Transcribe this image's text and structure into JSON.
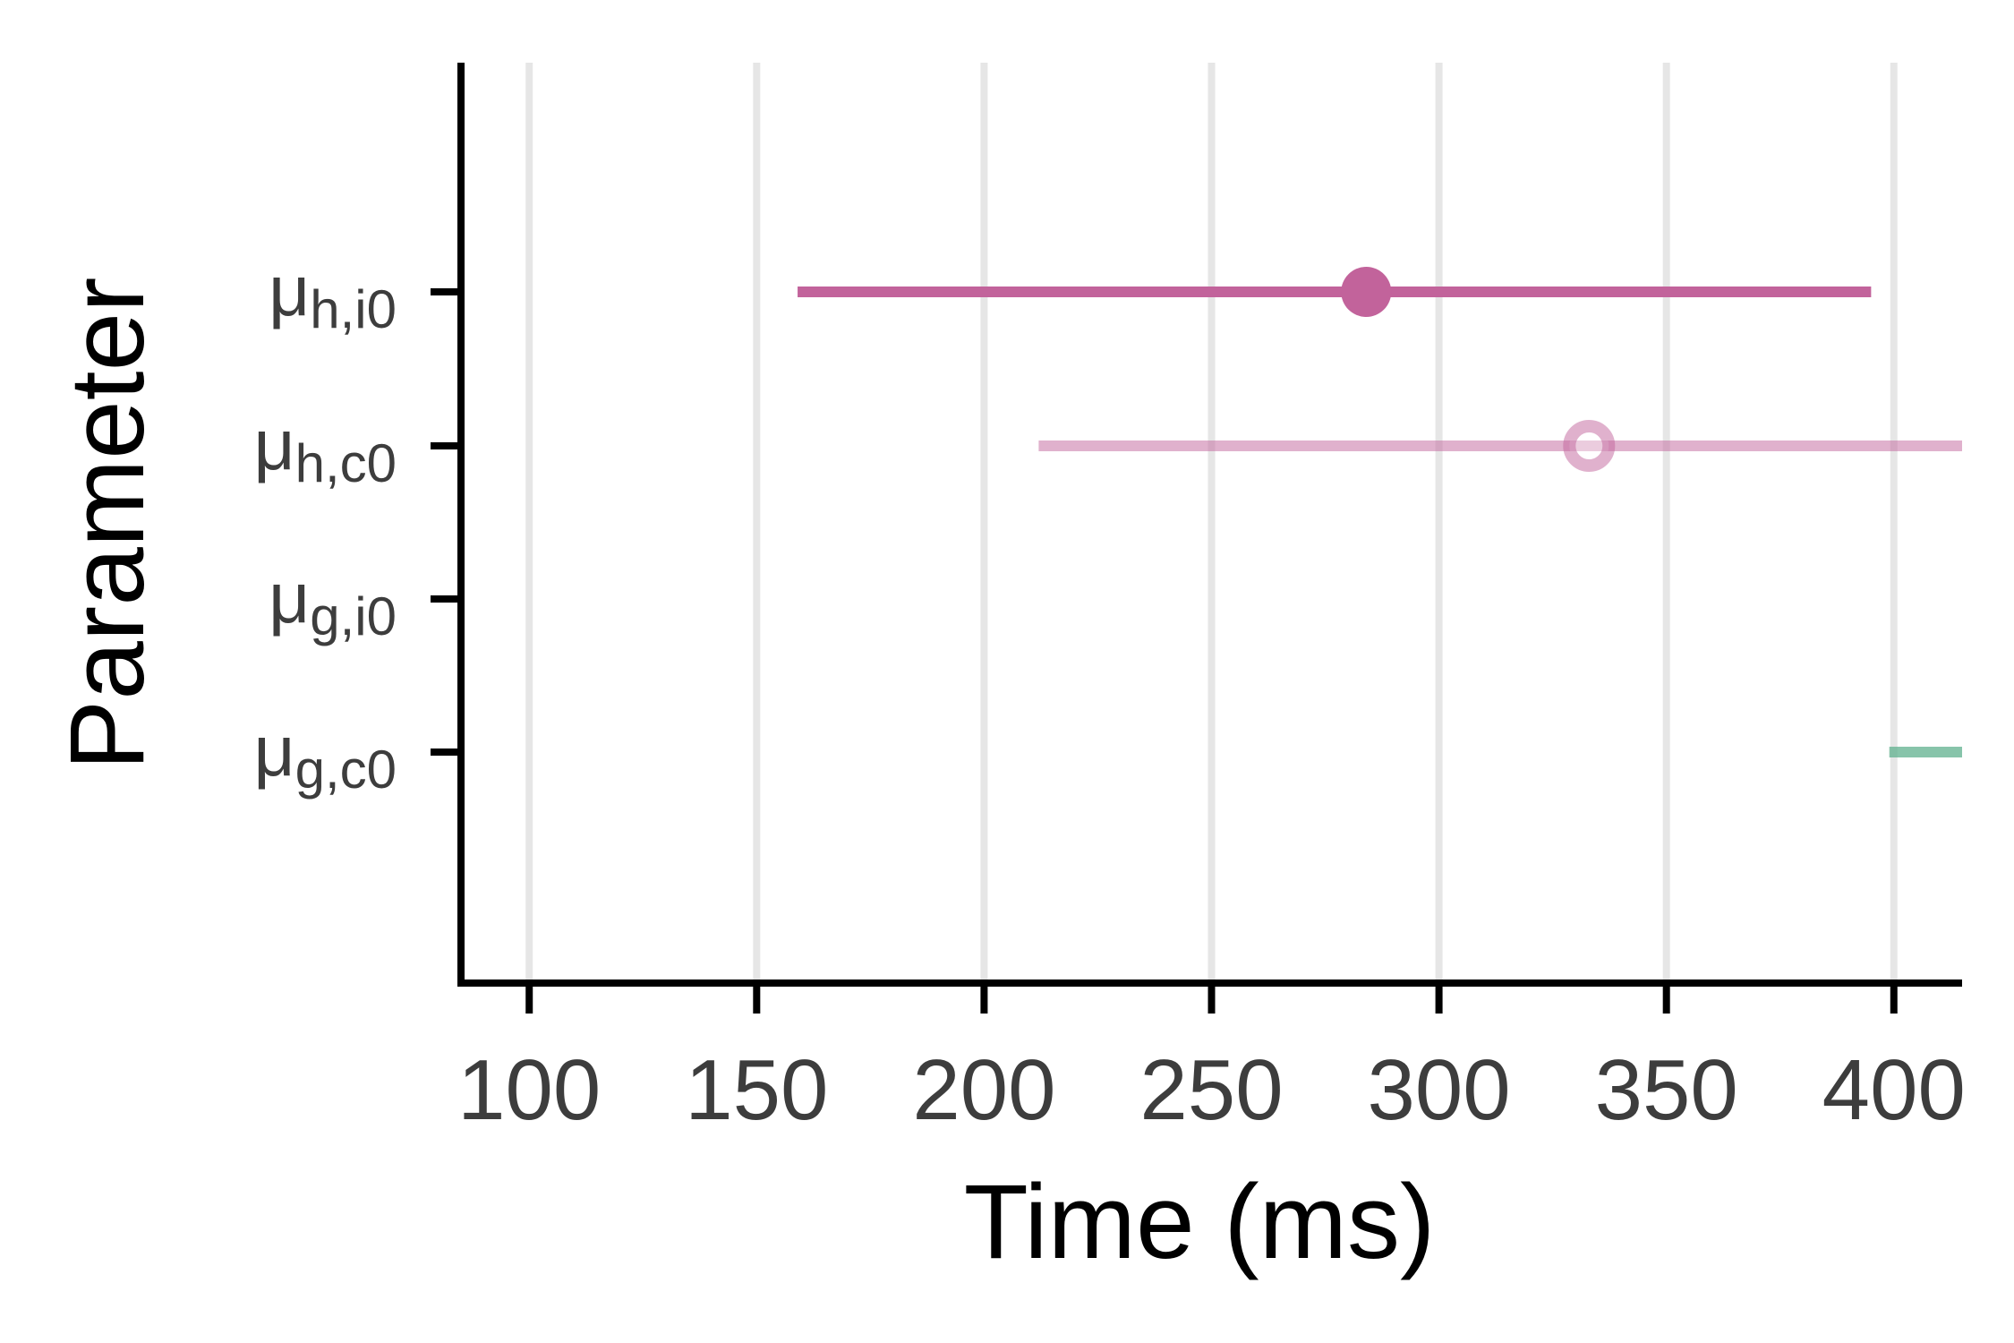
{
  "chart_data": {
    "type": "interval",
    "xlabel": "Time (ms)",
    "ylabel": "Parameter",
    "xlim": [
      85,
      415
    ],
    "x_ticks": [
      100,
      150,
      200,
      250,
      300,
      350,
      400
    ],
    "grid": "vertical",
    "parameters": [
      {
        "symbol": "μ",
        "sub": "h,i0",
        "low": 159,
        "high": 395,
        "estimate": 284,
        "color": "#c2639b",
        "opacity": 1.0,
        "marker": "filled"
      },
      {
        "symbol": "μ",
        "sub": "h,c0",
        "low": 212,
        "high": 415,
        "estimate": 333,
        "color": "#c2639b",
        "opacity": 0.5,
        "marker": "ring"
      },
      {
        "symbol": "μ",
        "sub": "g,i0",
        "low": null,
        "high": null,
        "estimate": null,
        "color": "#5fb08e",
        "opacity": 1.0,
        "marker": "none"
      },
      {
        "symbol": "μ",
        "sub": "g,c0",
        "low": 399,
        "high": 415,
        "estimate": null,
        "color": "#5fb08e",
        "opacity": 0.75,
        "marker": "none"
      }
    ]
  }
}
